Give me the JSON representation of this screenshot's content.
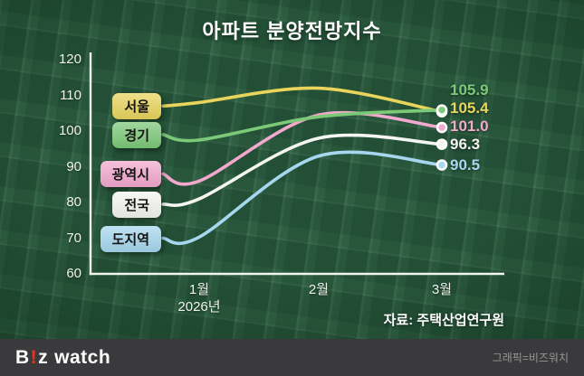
{
  "title": "아파트 분양전망지수",
  "source": "자료: 주택산업연구원",
  "footer": {
    "logo_b": "B",
    "logo_excl": "!",
    "logo_z": "z",
    "logo_watch": "watch",
    "credit": "그래픽=비즈워치"
  },
  "chart_data": {
    "type": "line",
    "title": "아파트 분양전망지수",
    "categories": [
      "1월",
      "2월",
      "3월"
    ],
    "x_year_label": "2026년",
    "ylim": [
      60,
      120
    ],
    "y_ticks": [
      120,
      110,
      100,
      90,
      80,
      70,
      60
    ],
    "grid": false,
    "legend_position": "left-inline-chips",
    "series": [
      {
        "name": "서울",
        "color": "#e9d45c",
        "start": 107.0,
        "values": [
          108.0,
          112.0,
          105.4
        ],
        "end_label": "105.4"
      },
      {
        "name": "경기",
        "color": "#7cc978",
        "start": 99.0,
        "values": [
          97.5,
          104.0,
          105.9
        ],
        "end_label": "105.9"
      },
      {
        "name": "광역시",
        "color": "#f3a8ce",
        "start": 88.0,
        "values": [
          86.0,
          104.5,
          101.0
        ],
        "end_label": "101.0"
      },
      {
        "name": "전국",
        "color": "#f4f4f0",
        "start": 79.5,
        "values": [
          81.0,
          98.0,
          96.3
        ],
        "end_label": "96.3"
      },
      {
        "name": "도지역",
        "color": "#a6d7ee",
        "start": 70.0,
        "values": [
          70.3,
          93.0,
          90.5
        ],
        "end_label": "90.5"
      }
    ]
  }
}
